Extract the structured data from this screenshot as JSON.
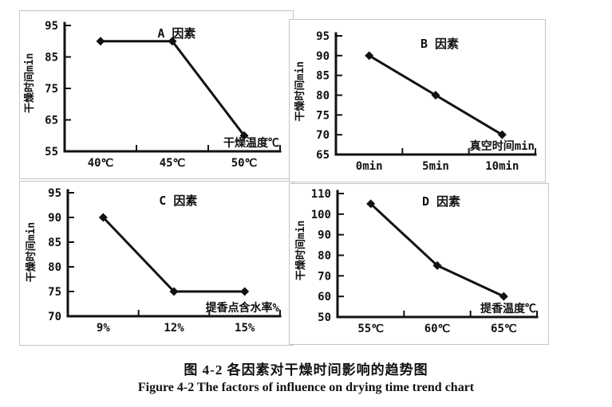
{
  "figure": {
    "caption_zh": "图 4-2 各因素对干燥时间影响的趋势图",
    "caption_en": "Figure 4-2 The factors of influence on drying time trend chart"
  },
  "colors": {
    "ink": "#111111",
    "panel_border": "#c5c5c5",
    "background": "#ffffff"
  },
  "chart_data": [
    {
      "type": "line",
      "panel": "A",
      "title": "A 因素",
      "ylabel": "干燥时间min",
      "xlabel": "干燥温度℃",
      "categories": [
        "40℃",
        "45℃",
        "50℃"
      ],
      "values": [
        90,
        90,
        60
      ],
      "ylim": [
        55,
        95
      ],
      "yticks": [
        55,
        65,
        75,
        85,
        95
      ],
      "marker": "diamond",
      "grid": false,
      "legend": false
    },
    {
      "type": "line",
      "panel": "B",
      "title": "B 因素",
      "ylabel": "干燥时间min",
      "xlabel": "真空时间min",
      "categories": [
        "0min",
        "5min",
        "10min"
      ],
      "values": [
        90,
        80,
        70
      ],
      "ylim": [
        65,
        95
      ],
      "yticks": [
        65,
        70,
        75,
        80,
        85,
        90,
        95
      ],
      "marker": "diamond",
      "grid": false,
      "legend": false
    },
    {
      "type": "line",
      "panel": "C",
      "title": "C 因素",
      "ylabel": "干燥时间min",
      "xlabel": "提香点含水率%",
      "categories": [
        "9%",
        "12%",
        "15%"
      ],
      "values": [
        90,
        75,
        75
      ],
      "ylim": [
        70,
        95
      ],
      "yticks": [
        70,
        75,
        80,
        85,
        90,
        95
      ],
      "marker": "diamond",
      "grid": false,
      "legend": false
    },
    {
      "type": "line",
      "panel": "D",
      "title": "D 因素",
      "ylabel": "干燥时间min",
      "xlabel": "提香温度℃",
      "categories": [
        "55℃",
        "60℃",
        "65℃"
      ],
      "values": [
        105,
        75,
        60
      ],
      "ylim": [
        50,
        110
      ],
      "yticks": [
        50,
        60,
        70,
        80,
        90,
        100,
        110
      ],
      "marker": "diamond",
      "grid": false,
      "legend": false
    }
  ]
}
